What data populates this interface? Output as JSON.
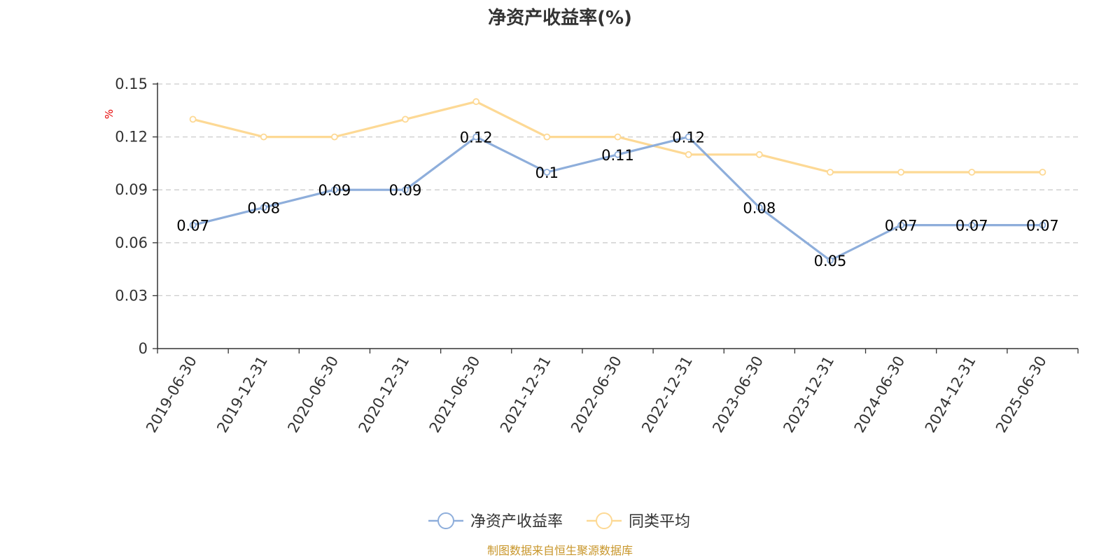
{
  "chart_data": {
    "type": "line",
    "title": "净资产收益率(%)",
    "ylabel": "%",
    "xlabel": "",
    "ylim": [
      0,
      0.15
    ],
    "yticks": [
      "0",
      "0.03",
      "0.06",
      "0.09",
      "0.12",
      "0.15"
    ],
    "grid": true,
    "legend_position": "bottom-center",
    "categories": [
      "2019-06-30",
      "2019-12-31",
      "2020-06-30",
      "2020-12-31",
      "2021-06-30",
      "2021-12-31",
      "2022-06-30",
      "2022-12-31",
      "2023-06-30",
      "2023-12-31",
      "2024-06-30",
      "2024-12-31",
      "2025-06-30"
    ],
    "series": [
      {
        "name": "净资产收益率",
        "color": "#8eaedb",
        "values": [
          0.07,
          0.08,
          0.09,
          0.09,
          0.12,
          0.1,
          0.11,
          0.12,
          0.08,
          0.05,
          0.07,
          0.07,
          0.07
        ],
        "labels": [
          "0.07",
          "0.08",
          "0.09",
          "0.09",
          "0.12",
          "0.1",
          "0.11",
          "0.12",
          "0.08",
          "0.05",
          "0.07",
          "0.07",
          "0.07"
        ]
      },
      {
        "name": "同类平均",
        "color": "#fdd995",
        "values": [
          0.13,
          0.12,
          0.12,
          0.13,
          0.14,
          0.12,
          0.12,
          0.11,
          0.11,
          0.1,
          0.1,
          0.1,
          0.1
        ]
      }
    ],
    "source": "制图数据来自恒生聚源数据库"
  }
}
